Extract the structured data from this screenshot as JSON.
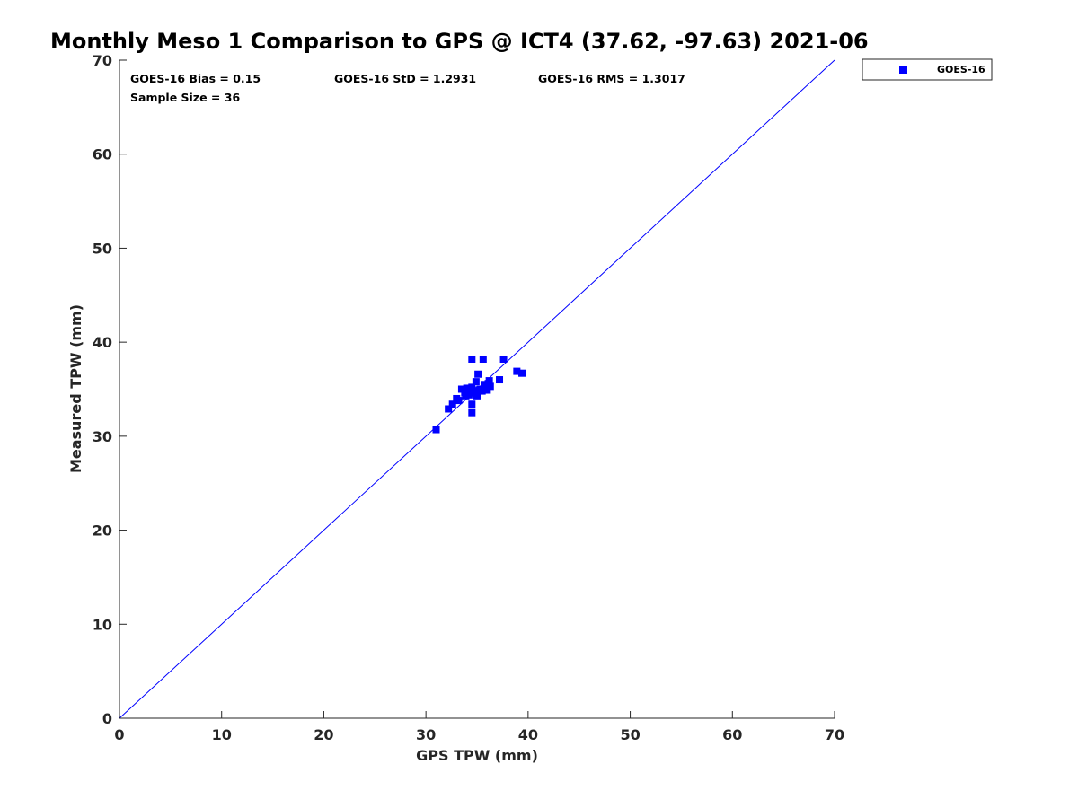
{
  "chart_data": {
    "type": "scatter",
    "title": "Monthly Meso 1 Comparison to GPS @ ICT4 (37.62, -97.63) 2021-06",
    "xlabel": "GPS TPW (mm)",
    "ylabel": "Measured TPW (mm)",
    "xlim": [
      0,
      70
    ],
    "ylim": [
      0,
      70
    ],
    "xticks": [
      "0",
      "10",
      "20",
      "30",
      "40",
      "50",
      "60",
      "70"
    ],
    "yticks": [
      "0",
      "10",
      "20",
      "30",
      "40",
      "50",
      "60",
      "70"
    ],
    "grid": false,
    "legend_position": "top-right",
    "reference_line": {
      "x": [
        0,
        70
      ],
      "y": [
        0,
        70
      ],
      "color": "#0000ff"
    },
    "stats": {
      "bias": "GOES-16 Bias = 0.15",
      "std": "GOES-16 StD = 1.2931",
      "rms": "GOES-16 RMS = 1.3017",
      "sample": "Sample Size = 36"
    },
    "series": [
      {
        "name": "GOES-16",
        "color": "#0000ff",
        "marker": "square",
        "x": [
          31.0,
          32.2,
          32.6,
          33.0,
          33.2,
          33.5,
          33.8,
          33.9,
          34.0,
          34.1,
          34.2,
          34.3,
          34.4,
          34.5,
          34.5,
          34.5,
          34.5,
          34.6,
          34.7,
          34.9,
          35.0,
          35.1,
          35.2,
          35.3,
          35.5,
          35.6,
          35.7,
          35.8,
          36.0,
          36.1,
          36.2,
          36.3,
          37.2,
          37.6,
          38.9,
          39.4
        ],
        "y": [
          30.7,
          32.9,
          33.4,
          34.0,
          33.8,
          35.0,
          34.6,
          34.3,
          35.1,
          34.9,
          34.4,
          35.0,
          34.7,
          38.2,
          32.5,
          33.4,
          35.2,
          34.6,
          34.8,
          35.8,
          34.3,
          36.6,
          34.9,
          35.0,
          34.8,
          38.2,
          35.5,
          35.2,
          34.9,
          35.6,
          35.9,
          35.3,
          36.0,
          38.2,
          36.9,
          36.7
        ]
      }
    ]
  }
}
